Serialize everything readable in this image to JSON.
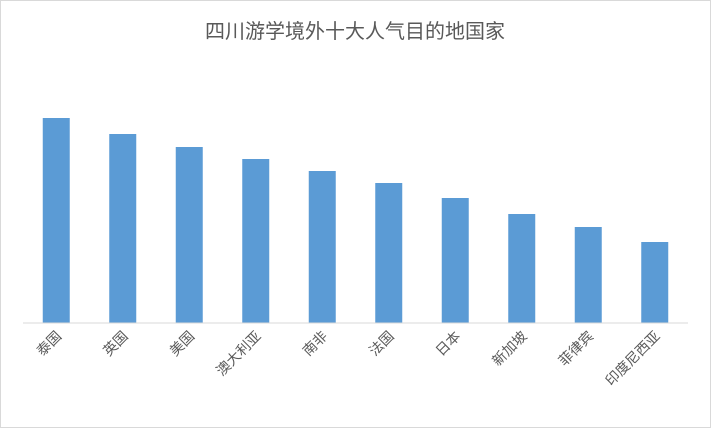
{
  "chart_data": {
    "type": "bar",
    "title": "四川游学境外十大人气目的地国家",
    "categories": [
      "泰国",
      "英国",
      "美国",
      "澳大利亚",
      "南非",
      "法国",
      "日本",
      "新加坡",
      "菲律宾",
      "印度尼西亚"
    ],
    "values": [
      205,
      189,
      176,
      164,
      152,
      140,
      125,
      109,
      96,
      81
    ],
    "color": "#5b9bd5",
    "ylim": [
      0,
      253
    ]
  }
}
